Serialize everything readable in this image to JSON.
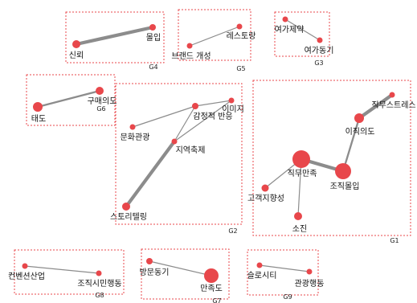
{
  "colors": {
    "node": "#e8474b",
    "edge": "#8c8c8c",
    "group_border": "#e8474b"
  },
  "groups": [
    {
      "id": "G1",
      "label": "G1"
    },
    {
      "id": "G2",
      "label": "G2"
    },
    {
      "id": "G3",
      "label": "G3"
    },
    {
      "id": "G4",
      "label": "G4"
    },
    {
      "id": "G5",
      "label": "G5"
    },
    {
      "id": "G6",
      "label": "G6"
    },
    {
      "id": "G7",
      "label": "G7"
    },
    {
      "id": "G8",
      "label": "G8"
    },
    {
      "id": "G9",
      "label": "G9"
    }
  ],
  "nodes": {
    "n_trust": {
      "label": "신뢰"
    },
    "n_immersion": {
      "label": "몰입"
    },
    "n_brand": {
      "label": "브랜드 개성"
    },
    "n_restaurant": {
      "label": "레스토랑"
    },
    "n_leisure_con": {
      "label": "여가제약"
    },
    "n_leisure_mot": {
      "label": "여가동기"
    },
    "n_attitude": {
      "label": "태도"
    },
    "n_purchase": {
      "label": "구매의도"
    },
    "n_emotion": {
      "label": "감정적 반응"
    },
    "n_image": {
      "label": "이미지"
    },
    "n_culture": {
      "label": "문화관광"
    },
    "n_festival": {
      "label": "지역축제"
    },
    "n_story": {
      "label": "스토리텔링"
    },
    "n_job_stress": {
      "label": "직무스트레스"
    },
    "n_turnover": {
      "label": "이직의도"
    },
    "n_job_sat": {
      "label": "직무만족"
    },
    "n_org_commit": {
      "label": "조직몰입"
    },
    "n_customer": {
      "label": "고객지향성"
    },
    "n_burnout": {
      "label": "소진"
    },
    "n_convention": {
      "label": "컨벤션산업"
    },
    "n_ocb": {
      "label": "조직시민행동"
    },
    "n_visit": {
      "label": "방문동기"
    },
    "n_satisfaction": {
      "label": "만족도"
    },
    "n_slowcity": {
      "label": "슬로시티"
    },
    "n_tour_behav": {
      "label": "관광행동"
    }
  },
  "edges": [
    {
      "from": "n_trust",
      "to": "n_immersion",
      "weight": "strong"
    },
    {
      "from": "n_brand",
      "to": "n_restaurant",
      "weight": "weak"
    },
    {
      "from": "n_leisure_con",
      "to": "n_leisure_mot",
      "weight": "weak"
    },
    {
      "from": "n_attitude",
      "to": "n_purchase",
      "weight": "medium"
    },
    {
      "from": "n_culture",
      "to": "n_emotion",
      "weight": "weak"
    },
    {
      "from": "n_emotion",
      "to": "n_image",
      "weight": "weak"
    },
    {
      "from": "n_emotion",
      "to": "n_festival",
      "weight": "weak"
    },
    {
      "from": "n_image",
      "to": "n_festival",
      "weight": "weak"
    },
    {
      "from": "n_festival",
      "to": "n_story",
      "weight": "strong"
    },
    {
      "from": "n_job_stress",
      "to": "n_turnover",
      "weight": "strong"
    },
    {
      "from": "n_turnover",
      "to": "n_org_commit",
      "weight": "medium"
    },
    {
      "from": "n_job_sat",
      "to": "n_org_commit",
      "weight": "strong"
    },
    {
      "from": "n_job_sat",
      "to": "n_customer",
      "weight": "weak"
    },
    {
      "from": "n_job_sat",
      "to": "n_burnout",
      "weight": "weak"
    },
    {
      "from": "n_convention",
      "to": "n_ocb",
      "weight": "weak"
    },
    {
      "from": "n_visit",
      "to": "n_satisfaction",
      "weight": "weak"
    },
    {
      "from": "n_slowcity",
      "to": "n_tour_behav",
      "weight": "weak"
    }
  ]
}
